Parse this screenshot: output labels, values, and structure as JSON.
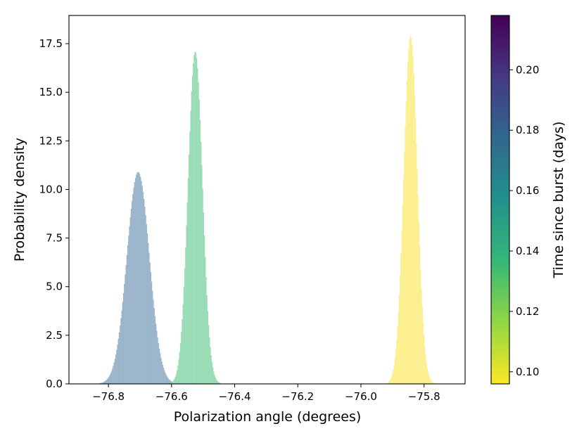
{
  "chart_data": {
    "type": "histogram",
    "title": "",
    "xlabel": "Polarization angle (degrees)",
    "ylabel": "Probability density",
    "xlim": [
      -76.925,
      -75.67
    ],
    "ylim": [
      0,
      18.95
    ],
    "x_ticks": [
      {
        "value": -76.8,
        "label": "−76.8"
      },
      {
        "value": -76.6,
        "label": "−76.6"
      },
      {
        "value": -76.4,
        "label": "−76.4"
      },
      {
        "value": -76.2,
        "label": "−76.2"
      },
      {
        "value": -76.0,
        "label": "−76.0"
      },
      {
        "value": -75.8,
        "label": "−75.8"
      }
    ],
    "y_ticks": [
      {
        "value": 0.0,
        "label": "0.0"
      },
      {
        "value": 2.5,
        "label": "2.5"
      },
      {
        "value": 5.0,
        "label": "5.0"
      },
      {
        "value": 7.5,
        "label": "7.5"
      },
      {
        "value": 10.0,
        "label": "10.0"
      },
      {
        "value": 12.5,
        "label": "12.5"
      },
      {
        "value": 15.0,
        "label": "15.0"
      },
      {
        "value": 17.5,
        "label": "17.5"
      }
    ],
    "grid": false,
    "series": [
      {
        "color": "#9ab4cb",
        "mean": -76.706,
        "sd": 0.0355,
        "peak": 10.9,
        "x_range": [
          -76.84,
          -76.57
        ]
      },
      {
        "color": "#98dcb5",
        "mean": -76.525,
        "sd": 0.0228,
        "peak": 17.1,
        "x_range": [
          -76.6,
          -76.44
        ]
      },
      {
        "color": "#fbef8f",
        "mean": -75.843,
        "sd": 0.0215,
        "peak": 17.9,
        "x_range": [
          -75.915,
          -75.765
        ]
      }
    ],
    "colorbar": {
      "label": "Time since burst (days)",
      "range": [
        0.096,
        0.218
      ],
      "colormap": "viridis",
      "colors": [
        "#fde725",
        "#90d743",
        "#35b779",
        "#21918c",
        "#31688e",
        "#443983",
        "#440154"
      ],
      "ticks": [
        {
          "value": 0.1,
          "label": "0.10"
        },
        {
          "value": 0.12,
          "label": "0.12"
        },
        {
          "value": 0.14,
          "label": "0.14"
        },
        {
          "value": 0.16,
          "label": "0.16"
        },
        {
          "value": 0.18,
          "label": "0.18"
        },
        {
          "value": 0.2,
          "label": "0.20"
        }
      ]
    }
  }
}
